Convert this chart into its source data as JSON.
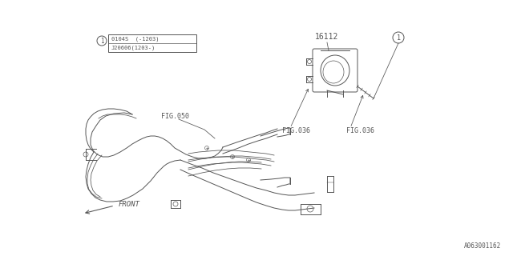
{
  "bg_color": "#ffffff",
  "line_color": "#555555",
  "fig_width": 6.4,
  "fig_height": 3.2,
  "dpi": 100,
  "part_number": "16112",
  "legend_line1": "0104S  (-1203)",
  "legend_line2": "J20606(1203-)",
  "fig_label_050": "FIG.050",
  "fig_label_036a": "FIG.036",
  "fig_label_036b": "FIG.036",
  "front_label": "FRONT",
  "diagram_id": "A063001162",
  "lw": 0.7
}
